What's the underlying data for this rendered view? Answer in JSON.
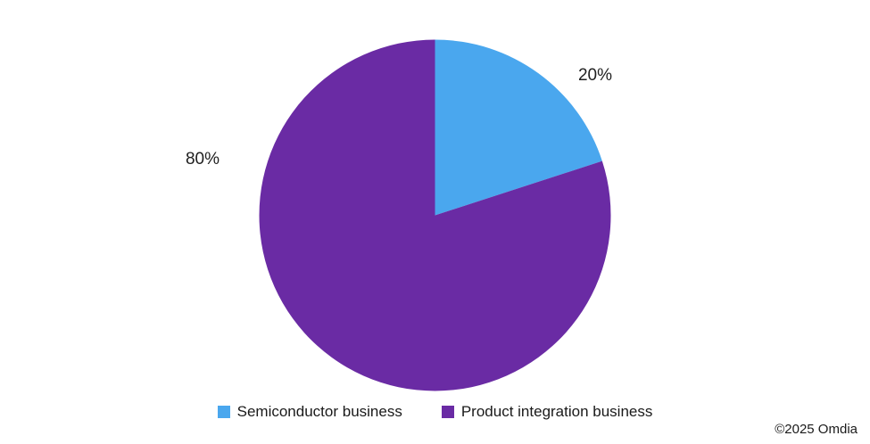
{
  "chart_data": {
    "type": "pie",
    "title": "",
    "start_angle_deg": -90,
    "direction": "clockwise",
    "legend_position": "bottom",
    "grid": false,
    "slices": [
      {
        "name": "Semiconductor business",
        "value": 20,
        "label": "20%",
        "color": "#4AA7EE"
      },
      {
        "name": "Product integration business",
        "value": 80,
        "label": "80%",
        "color": "#6A2BA4"
      }
    ]
  },
  "footer": {
    "copyright": "©2025 Omdia"
  }
}
